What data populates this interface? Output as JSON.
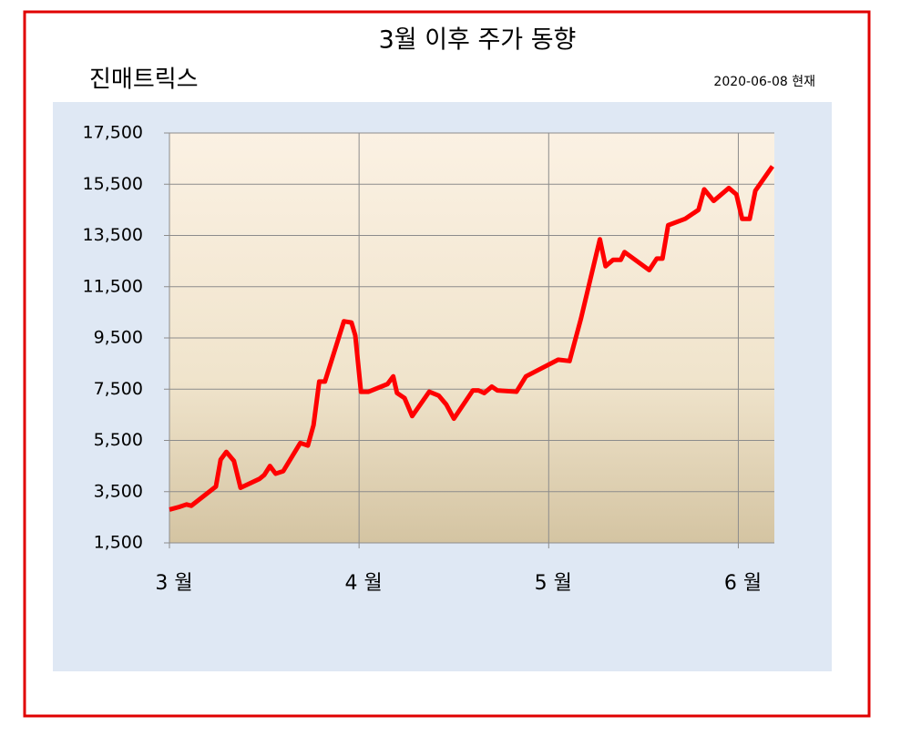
{
  "chart_data": {
    "type": "line",
    "title": "3월 이후 주가 동향",
    "subtitle": "진매트릭스",
    "annotation": "2020-06-08 현재",
    "x": [
      0,
      0.05,
      0.09,
      0.115,
      0.245,
      0.27,
      0.3,
      0.34,
      0.375,
      0.475,
      0.5,
      0.53,
      0.56,
      0.6,
      0.69,
      0.73,
      0.76,
      0.79,
      0.82,
      0.92,
      0.96,
      0.98,
      1.01,
      1.05,
      1.15,
      1.18,
      1.2,
      1.24,
      1.28,
      1.37,
      1.42,
      1.46,
      1.5,
      1.6,
      1.63,
      1.66,
      1.7,
      1.73,
      1.83,
      1.88,
      2.05,
      2.11,
      2.17,
      2.27,
      2.3,
      2.34,
      2.38,
      2.4,
      2.53,
      2.57,
      2.6,
      2.63,
      2.72,
      2.79,
      2.82,
      2.87,
      2.95,
      2.99,
      3.02,
      3.06,
      3.09,
      3.18
    ],
    "series": [
      {
        "color": "#ff0000",
        "values": [
          2800,
          2900,
          3000,
          2950,
          3700,
          4750,
          5050,
          4700,
          3650,
          4000,
          4150,
          4500,
          4200,
          4300,
          5400,
          5300,
          6100,
          7800,
          7800,
          10150,
          10100,
          9600,
          7400,
          7400,
          7700,
          8000,
          7350,
          7150,
          6450,
          7400,
          7250,
          6900,
          6350,
          7450,
          7450,
          7350,
          7600,
          7450,
          7400,
          8000,
          8650,
          8600,
          10250,
          13350,
          12300,
          12550,
          12550,
          12850,
          12150,
          12600,
          12600,
          13900,
          14150,
          14500,
          15300,
          14850,
          15350,
          15100,
          14150,
          14150,
          15250,
          16200
        ]
      }
    ],
    "xlim": [
      0,
      3.19
    ],
    "xticks": [
      {
        "value": 0,
        "label": "3 월"
      },
      {
        "value": 1,
        "label": "4 월"
      },
      {
        "value": 2,
        "label": "5 월"
      },
      {
        "value": 3,
        "label": "6 월"
      }
    ],
    "ylim": [
      1500,
      17500
    ],
    "yticks": [
      {
        "value": 1500,
        "label": "1,500"
      },
      {
        "value": 3500,
        "label": "3,500"
      },
      {
        "value": 5500,
        "label": "5,500"
      },
      {
        "value": 7500,
        "label": "7,500"
      },
      {
        "value": 9500,
        "label": "9,500"
      },
      {
        "value": 11500,
        "label": "11,500"
      },
      {
        "value": 13500,
        "label": "13,500"
      },
      {
        "value": 15500,
        "label": "15,500"
      },
      {
        "value": 17500,
        "label": "17,500"
      }
    ],
    "grid": true
  }
}
